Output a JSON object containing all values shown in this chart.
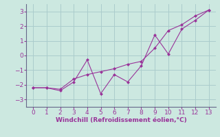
{
  "line1_x": [
    0,
    1,
    2,
    3,
    4,
    5,
    6,
    7,
    8,
    9,
    10,
    11,
    12,
    13
  ],
  "line1_y": [
    -2.2,
    -2.2,
    -2.4,
    -1.8,
    -0.3,
    -2.6,
    -1.3,
    -1.8,
    -0.7,
    1.4,
    0.1,
    1.8,
    2.4,
    3.1
  ],
  "line2_x": [
    0,
    1,
    2,
    3,
    4,
    5,
    6,
    7,
    8,
    9,
    10,
    11,
    12,
    13
  ],
  "line2_y": [
    -2.2,
    -2.2,
    -2.3,
    -1.6,
    -1.3,
    -1.1,
    -0.9,
    -0.6,
    -0.4,
    0.5,
    1.7,
    2.1,
    2.7,
    3.1
  ],
  "line_color": "#993399",
  "bg_color": "#cce8e0",
  "grid_color": "#aacccc",
  "spine_color": "#666688",
  "xlabel": "Windchill (Refroidissement éolien,°C)",
  "xlabel_color": "#993399",
  "tick_color": "#993399",
  "ylim": [
    -3.5,
    3.5
  ],
  "xlim": [
    -0.5,
    13.5
  ],
  "yticks": [
    -3,
    -2,
    -1,
    0,
    1,
    2,
    3
  ],
  "xticks": [
    0,
    1,
    2,
    3,
    4,
    5,
    6,
    7,
    8,
    9,
    10,
    11,
    12,
    13
  ]
}
